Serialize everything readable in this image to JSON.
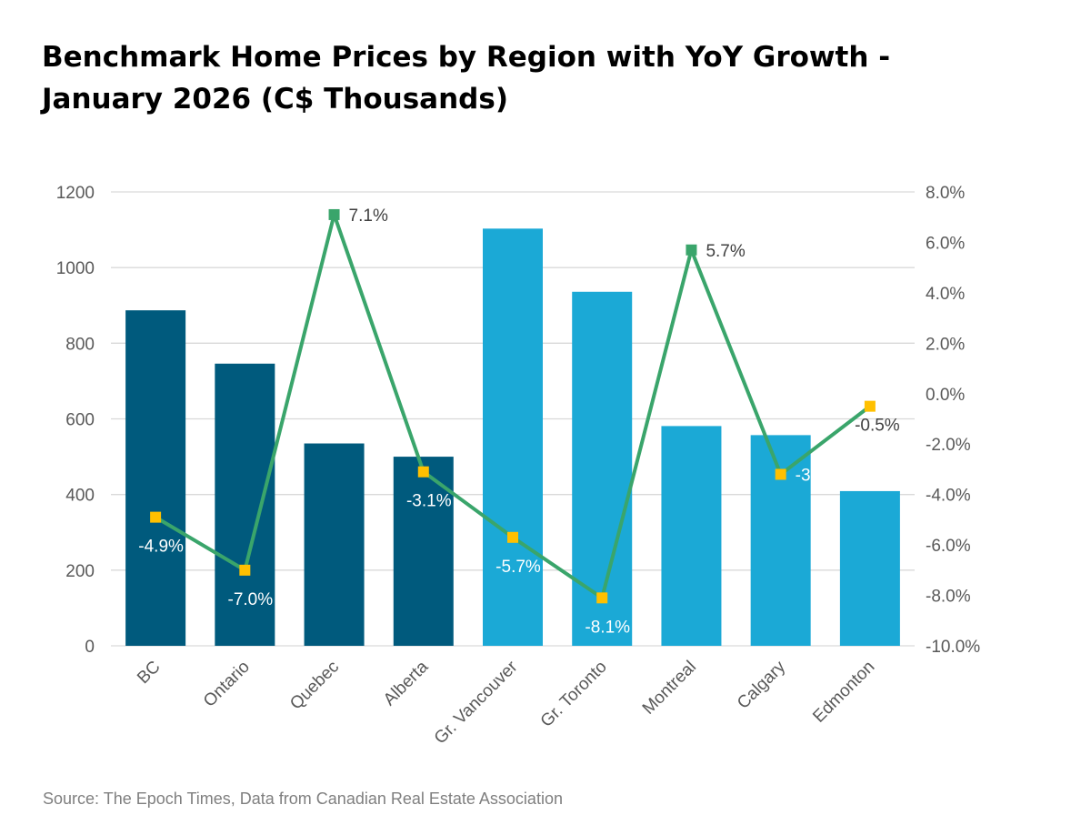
{
  "title_line1": "Benchmark Home Prices by Region with YoY Growth -",
  "title_line2": "January 2026 (C$ Thousands)",
  "source": "Source: The Epoch Times, Data from Canadian Real Estate Association",
  "colors": {
    "province_bar": "#005a7d",
    "city_bar": "#1ba9d6",
    "line": "#3aa56b",
    "positive_marker": "#3aa56b",
    "negative_marker": "#ffc000",
    "grid": "#d9d9d9",
    "tick_text": "#595959"
  },
  "chart_data": {
    "type": "bar",
    "categories": [
      "BC",
      "Ontario",
      "Quebec",
      "Alberta",
      "Gr. Vancouver",
      "Gr. Toronto",
      "Montreal",
      "Calgary",
      "Edmonton"
    ],
    "bar_group": [
      "province",
      "province",
      "province",
      "province",
      "city",
      "city",
      "city",
      "city",
      "city"
    ],
    "values": [
      887,
      746,
      535,
      500,
      1103,
      936,
      581,
      557,
      409
    ],
    "y_ticks": [
      "0",
      "200",
      "400",
      "600",
      "800",
      "1000",
      "1200"
    ],
    "ylim": [
      0,
      1200
    ],
    "series_line": {
      "type": "line",
      "axis": "secondary",
      "values": [
        -4.9,
        -7.0,
        7.1,
        -3.1,
        -5.7,
        -8.1,
        5.7,
        -3.2,
        -0.5
      ],
      "labels": [
        "-4.9%",
        "-7.0%",
        "7.1%",
        "-3.1%",
        "-5.7%",
        "-8.1%",
        "5.7%",
        "-3.2%",
        "-0.5%"
      ]
    },
    "y2_ticks": [
      "-10.0%",
      "-8.0%",
      "-6.0%",
      "-4.0%",
      "-2.0%",
      "0.0%",
      "2.0%",
      "4.0%",
      "6.0%",
      "8.0%"
    ],
    "y2lim": [
      -10,
      8
    ],
    "grid": true,
    "legend": "none"
  }
}
